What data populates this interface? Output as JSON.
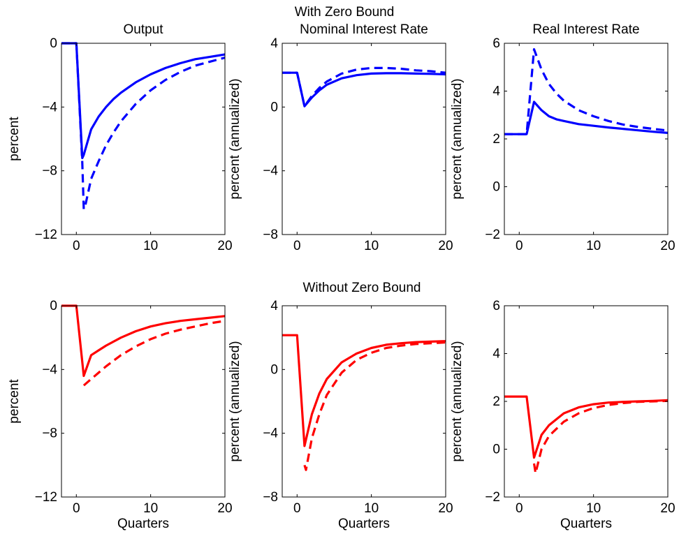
{
  "figure": {
    "row_titles": [
      "With Zero Bound",
      "Without Zero Bound"
    ],
    "colors": {
      "top": "#0000ff",
      "bottom": "#ff0000"
    }
  },
  "chart_data": [
    {
      "type": "line",
      "row": 0,
      "col": 0,
      "title": "Output",
      "xlabel": "",
      "ylabel": "percent",
      "xlim": [
        -2,
        20
      ],
      "ylim": [
        -12,
        0
      ],
      "xticks": [
        0,
        10,
        20
      ],
      "yticks": [
        -12,
        -8,
        -4,
        0
      ],
      "xtick_labels": [
        "0",
        "10",
        "20"
      ],
      "ytick_labels": [
        "−12",
        "−8",
        "−4",
        "0"
      ],
      "color": "#0000ff",
      "series": [
        {
          "style": "solid",
          "x": [
            -2,
            0,
            0.8,
            1,
            2,
            3,
            4,
            5,
            6,
            8,
            10,
            12,
            14,
            16,
            18,
            20
          ],
          "y": [
            0,
            0,
            -7.2,
            -7.0,
            -5.4,
            -4.6,
            -4.0,
            -3.5,
            -3.1,
            -2.45,
            -1.95,
            -1.55,
            -1.25,
            -1.0,
            -0.85,
            -0.7
          ]
        },
        {
          "style": "dashed",
          "x": [
            -2,
            0,
            0.8,
            1,
            1.2,
            2,
            3,
            4,
            5,
            6,
            8,
            10,
            12,
            14,
            16,
            18,
            20
          ],
          "y": [
            0,
            0,
            -7.5,
            -10.4,
            -10.2,
            -8.5,
            -7.4,
            -6.4,
            -5.6,
            -4.9,
            -3.8,
            -2.95,
            -2.3,
            -1.8,
            -1.4,
            -1.15,
            -0.9
          ]
        }
      ]
    },
    {
      "type": "line",
      "row": 0,
      "col": 1,
      "title": "Nominal Interest Rate",
      "xlabel": "",
      "ylabel": "percent (annualized)",
      "xlim": [
        -2,
        20
      ],
      "ylim": [
        -8,
        4
      ],
      "xticks": [
        0,
        10,
        20
      ],
      "yticks": [
        -8,
        -4,
        0,
        4
      ],
      "xtick_labels": [
        "0",
        "10",
        "20"
      ],
      "ytick_labels": [
        "−8",
        "−4",
        "0",
        "4"
      ],
      "color": "#0000ff",
      "series": [
        {
          "style": "solid",
          "x": [
            -2,
            0,
            1,
            2,
            3,
            4,
            6,
            8,
            10,
            12,
            14,
            16,
            18,
            20
          ],
          "y": [
            2.15,
            2.15,
            0.05,
            0.6,
            1.05,
            1.4,
            1.8,
            2.0,
            2.1,
            2.12,
            2.12,
            2.1,
            2.08,
            2.05
          ]
        },
        {
          "style": "dashed",
          "x": [
            -2,
            0,
            1,
            2,
            3,
            4,
            6,
            8,
            10,
            12,
            14,
            16,
            18,
            20
          ],
          "y": [
            2.15,
            2.15,
            0.05,
            0.7,
            1.2,
            1.6,
            2.1,
            2.35,
            2.45,
            2.45,
            2.4,
            2.3,
            2.25,
            2.15
          ]
        }
      ]
    },
    {
      "type": "line",
      "row": 0,
      "col": 2,
      "title": "Real Interest Rate",
      "xlabel": "",
      "ylabel": "percent (annualized)",
      "xlim": [
        -2,
        20
      ],
      "ylim": [
        -2,
        6
      ],
      "xticks": [
        0,
        10,
        20
      ],
      "yticks": [
        -2,
        0,
        2,
        4,
        6
      ],
      "xtick_labels": [
        "0",
        "10",
        "20"
      ],
      "ytick_labels": [
        "−2",
        "0",
        "2",
        "4",
        "6"
      ],
      "color": "#0000ff",
      "series": [
        {
          "style": "solid",
          "x": [
            -2,
            1,
            2,
            3,
            4,
            5,
            6,
            8,
            10,
            12,
            14,
            16,
            18,
            20
          ],
          "y": [
            2.2,
            2.2,
            3.55,
            3.2,
            2.95,
            2.82,
            2.75,
            2.62,
            2.55,
            2.48,
            2.42,
            2.36,
            2.3,
            2.25
          ]
        },
        {
          "style": "dashed",
          "x": [
            -2,
            1,
            2,
            3,
            4,
            5,
            6,
            8,
            10,
            12,
            14,
            16,
            18,
            20
          ],
          "y": [
            2.2,
            2.2,
            5.75,
            4.9,
            4.3,
            3.9,
            3.6,
            3.2,
            2.95,
            2.75,
            2.6,
            2.5,
            2.42,
            2.35
          ]
        }
      ]
    },
    {
      "type": "line",
      "row": 1,
      "col": 0,
      "title": "",
      "xlabel": "Quarters",
      "ylabel": "percent",
      "xlim": [
        -2,
        20
      ],
      "ylim": [
        -12,
        0
      ],
      "xticks": [
        0,
        10,
        20
      ],
      "yticks": [
        -12,
        -8,
        -4,
        0
      ],
      "xtick_labels": [
        "0",
        "10",
        "20"
      ],
      "ytick_labels": [
        "−12",
        "−8",
        "−4",
        "0"
      ],
      "color": "#ff0000",
      "series": [
        {
          "style": "solid",
          "x": [
            -2,
            0,
            1,
            2,
            3,
            4,
            6,
            8,
            10,
            12,
            14,
            16,
            18,
            20
          ],
          "y": [
            0,
            0,
            -4.4,
            -3.1,
            -2.8,
            -2.5,
            -2.0,
            -1.6,
            -1.3,
            -1.1,
            -0.95,
            -0.85,
            -0.75,
            -0.65
          ]
        },
        {
          "style": "dashed",
          "x": [
            1,
            2,
            3,
            4,
            6,
            8,
            10,
            12,
            14,
            16,
            18,
            20
          ],
          "y": [
            -5.0,
            -4.6,
            -4.2,
            -3.8,
            -3.1,
            -2.55,
            -2.1,
            -1.75,
            -1.5,
            -1.3,
            -1.1,
            -0.95
          ]
        }
      ]
    },
    {
      "type": "line",
      "row": 1,
      "col": 1,
      "title": "",
      "xlabel": "Quarters",
      "ylabel": "percent (annualized)",
      "xlim": [
        -2,
        20
      ],
      "ylim": [
        -8,
        4
      ],
      "xticks": [
        0,
        10,
        20
      ],
      "yticks": [
        -8,
        -4,
        0,
        4
      ],
      "xtick_labels": [
        "0",
        "10",
        "20"
      ],
      "ytick_labels": [
        "−8",
        "−4",
        "0",
        "4"
      ],
      "color": "#ff0000",
      "series": [
        {
          "style": "solid",
          "x": [
            -2,
            0,
            1,
            2,
            3,
            4,
            6,
            8,
            10,
            12,
            14,
            16,
            18,
            20
          ],
          "y": [
            2.15,
            2.15,
            -4.8,
            -2.8,
            -1.5,
            -0.6,
            0.45,
            1.0,
            1.35,
            1.55,
            1.65,
            1.72,
            1.75,
            1.78
          ]
        },
        {
          "style": "dashed",
          "x": [
            1,
            1.2,
            2,
            3,
            4,
            6,
            8,
            10,
            12,
            14,
            16,
            18,
            20
          ],
          "y": [
            -6.0,
            -6.3,
            -4.3,
            -2.8,
            -1.6,
            -0.2,
            0.6,
            1.05,
            1.35,
            1.5,
            1.6,
            1.65,
            1.7
          ]
        }
      ]
    },
    {
      "type": "line",
      "row": 1,
      "col": 2,
      "title": "",
      "xlabel": "Quarters",
      "ylabel": "percent (annualized)",
      "xlim": [
        -2,
        20
      ],
      "ylim": [
        -2,
        6
      ],
      "xticks": [
        0,
        10,
        20
      ],
      "yticks": [
        -2,
        0,
        2,
        4,
        6
      ],
      "xtick_labels": [
        "0",
        "10",
        "20"
      ],
      "ytick_labels": [
        "−2",
        "0",
        "2",
        "4",
        "6"
      ],
      "color": "#ff0000",
      "series": [
        {
          "style": "solid",
          "x": [
            -2,
            1,
            2,
            3,
            4,
            6,
            8,
            10,
            12,
            14,
            16,
            18,
            20
          ],
          "y": [
            2.2,
            2.2,
            -0.35,
            0.6,
            1.0,
            1.5,
            1.75,
            1.88,
            1.95,
            1.98,
            2.0,
            2.02,
            2.05
          ]
        },
        {
          "style": "dashed",
          "x": [
            2,
            2.2,
            3,
            4,
            6,
            8,
            10,
            12,
            14,
            16,
            18,
            20
          ],
          "y": [
            -0.6,
            -1.0,
            0.0,
            0.55,
            1.15,
            1.5,
            1.72,
            1.85,
            1.93,
            1.98,
            2.0,
            2.02
          ]
        }
      ]
    }
  ]
}
